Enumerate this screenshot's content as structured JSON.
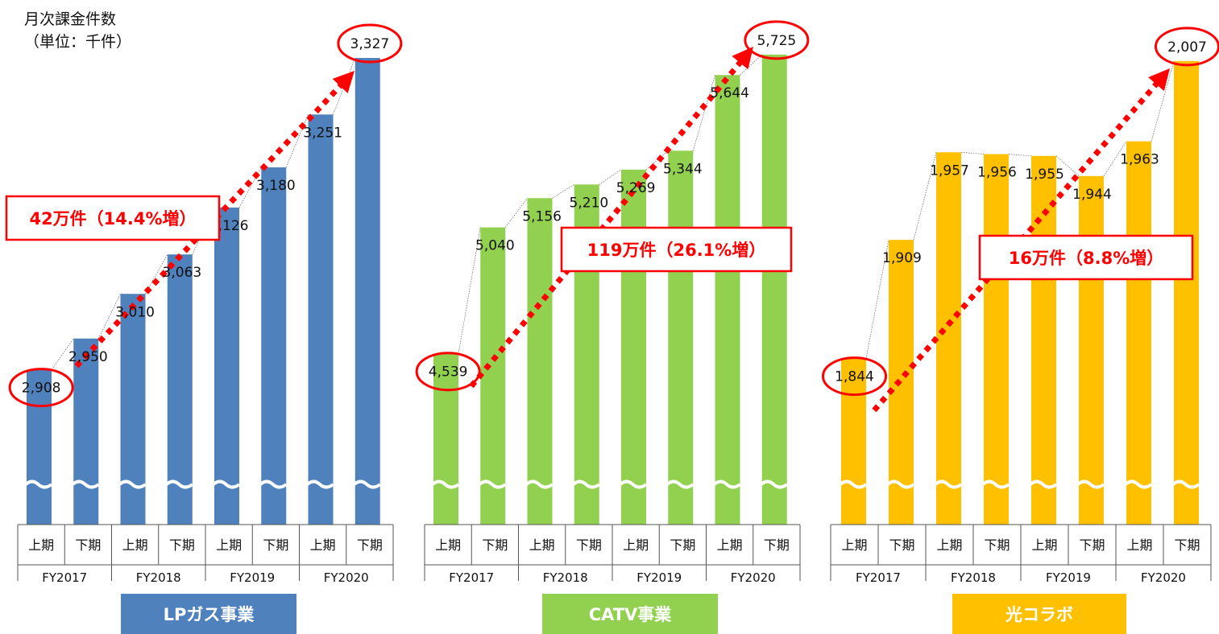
{
  "header": {
    "unit_line1": "月次課金件数",
    "unit_line2": "（単位：千件）"
  },
  "chart_data": [
    {
      "type": "bar",
      "title": "LPガス事業",
      "color": "#4F81BD",
      "categories": [
        "上期",
        "下期",
        "上期",
        "下期",
        "上期",
        "下期",
        "上期",
        "下期"
      ],
      "years": [
        "FY2017",
        "FY2018",
        "FY2019",
        "FY2020"
      ],
      "values": [
        2908,
        2950,
        3010,
        3063,
        3126,
        3180,
        3251,
        3327
      ],
      "value_labels": [
        "2,908",
        "2,950",
        "3,010",
        "3,063",
        "3,126",
        "3,180",
        "3,251",
        "3,327"
      ],
      "ylim": [
        2700,
        3340
      ],
      "axis_break": true,
      "annotation": "42万件（14.4%増）"
    },
    {
      "type": "bar",
      "title": "CATV事業",
      "color": "#92D050",
      "categories": [
        "上期",
        "下期",
        "上期",
        "下期",
        "上期",
        "下期",
        "上期",
        "下期"
      ],
      "years": [
        "FY2017",
        "FY2018",
        "FY2019",
        "FY2020"
      ],
      "values": [
        4539,
        5040,
        5156,
        5210,
        5269,
        5344,
        5644,
        5725
      ],
      "value_labels": [
        "4,539",
        "5,040",
        "5,156",
        "5,210",
        "5,269",
        "5,344",
        "5,644",
        "5,725"
      ],
      "ylim": [
        3862,
        5750
      ],
      "axis_break": true,
      "annotation": "119万件（26.1%増）"
    },
    {
      "type": "bar",
      "title": "光コラボ",
      "color": "#FFC000",
      "categories": [
        "上期",
        "下期",
        "上期",
        "下期",
        "上期",
        "下期",
        "上期",
        "下期"
      ],
      "years": [
        "FY2017",
        "FY2018",
        "FY2019",
        "FY2020"
      ],
      "values": [
        1844,
        1909,
        1957,
        1956,
        1955,
        1944,
        1963,
        2007
      ],
      "value_labels": [
        "1,844",
        "1,909",
        "1,957",
        "1,956",
        "1,955",
        "1,944",
        "1,963",
        "2,007"
      ],
      "ylim": [
        1753,
        2014
      ],
      "axis_break": true,
      "annotation": "16万件（8.8%増）"
    }
  ]
}
